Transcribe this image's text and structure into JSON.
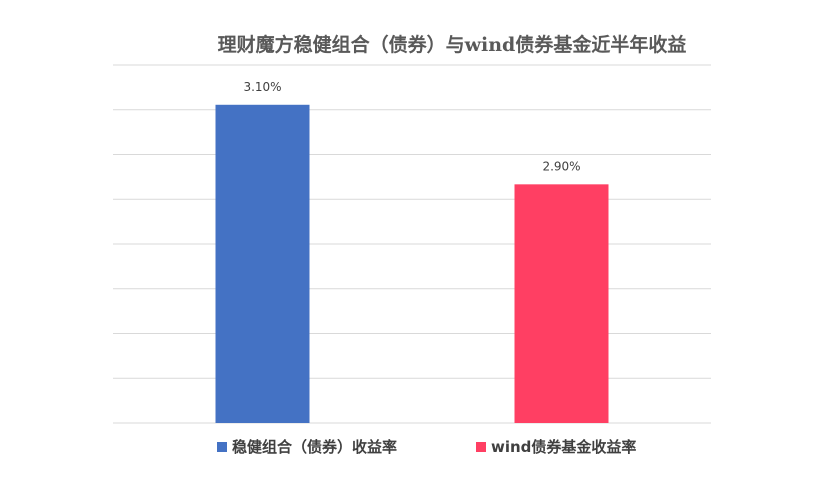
{
  "chart_data": {
    "type": "bar",
    "title": "理财魔方稳健组合（债券）与wind债券基金近半年收益",
    "xlabel": "",
    "ylabel": "",
    "ylim": [
      2.3,
      3.2
    ],
    "grid": true,
    "legend_position": "bottom",
    "bars": [
      {
        "name": "稳健组合（债券）收益率",
        "value": 3.1,
        "label": "3.10%",
        "color": "#4472C4"
      },
      {
        "name": "wind债券基金收益率",
        "value": 2.9,
        "label": "2.90%",
        "color": "#FF3F63"
      }
    ]
  }
}
